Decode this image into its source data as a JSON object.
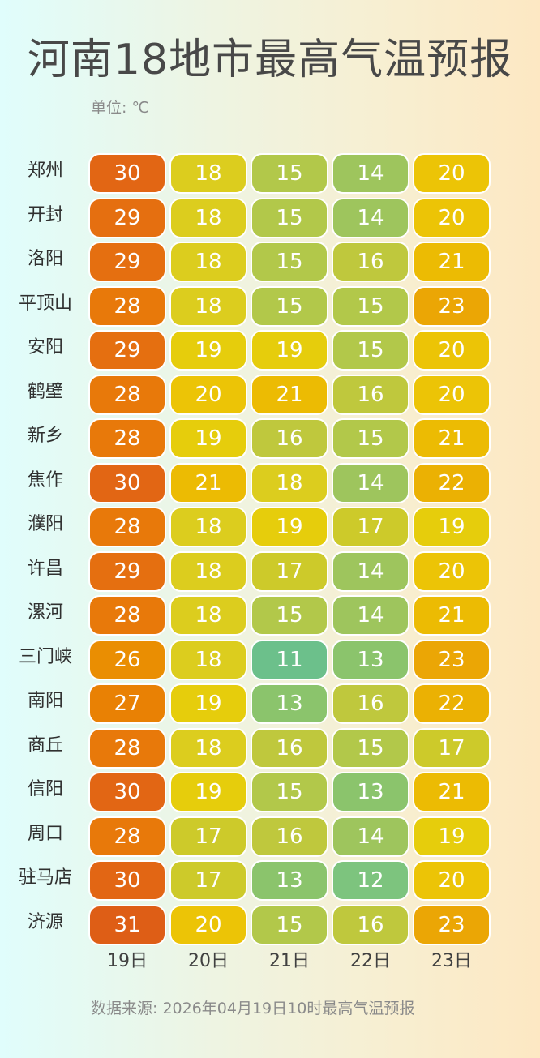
{
  "header": {
    "title": "河南18地市最高气温预报",
    "unit": "单位: ℃"
  },
  "footer": {
    "source": "数据来源: 2026年04月19日10时最高气温预报"
  },
  "colors": {
    "11": "#6cc08b",
    "12": "#7dc47e",
    "13": "#8bc46c",
    "14": "#9ec55d",
    "15": "#b2c84a",
    "16": "#bfc83d",
    "17": "#cdca2a",
    "18": "#dccd1e",
    "19": "#e6cd0c",
    "20": "#ecc406",
    "21": "#ecbb03",
    "22": "#ebb103",
    "23": "#eba605",
    "26": "#ea8e02",
    "27": "#e98104",
    "28": "#e8790a",
    "29": "#e56f10",
    "30": "#e26614",
    "31": "#de5e16"
  },
  "chart_data": {
    "type": "heatmap",
    "title": "河南18地市最高气温预报",
    "unit": "℃",
    "x": [
      "19日",
      "20日",
      "21日",
      "22日",
      "23日"
    ],
    "y": [
      "郑州",
      "开封",
      "洛阳",
      "平顶山",
      "安阳",
      "鹤壁",
      "新乡",
      "焦作",
      "濮阳",
      "许昌",
      "漯河",
      "三门峡",
      "南阳",
      "商丘",
      "信阳",
      "周口",
      "驻马店",
      "济源"
    ],
    "values": [
      [
        30,
        18,
        15,
        14,
        20
      ],
      [
        29,
        18,
        15,
        14,
        20
      ],
      [
        29,
        18,
        15,
        16,
        21
      ],
      [
        28,
        18,
        15,
        15,
        23
      ],
      [
        29,
        19,
        19,
        15,
        20
      ],
      [
        28,
        20,
        21,
        16,
        20
      ],
      [
        28,
        19,
        16,
        15,
        21
      ],
      [
        30,
        21,
        18,
        14,
        22
      ],
      [
        28,
        18,
        19,
        17,
        19
      ],
      [
        29,
        18,
        17,
        14,
        20
      ],
      [
        28,
        18,
        15,
        14,
        21
      ],
      [
        26,
        18,
        11,
        13,
        23
      ],
      [
        27,
        19,
        13,
        16,
        22
      ],
      [
        28,
        18,
        16,
        15,
        17
      ],
      [
        30,
        19,
        15,
        13,
        21
      ],
      [
        28,
        17,
        16,
        14,
        19
      ],
      [
        30,
        17,
        13,
        12,
        20
      ],
      [
        31,
        20,
        15,
        16,
        23
      ]
    ]
  }
}
